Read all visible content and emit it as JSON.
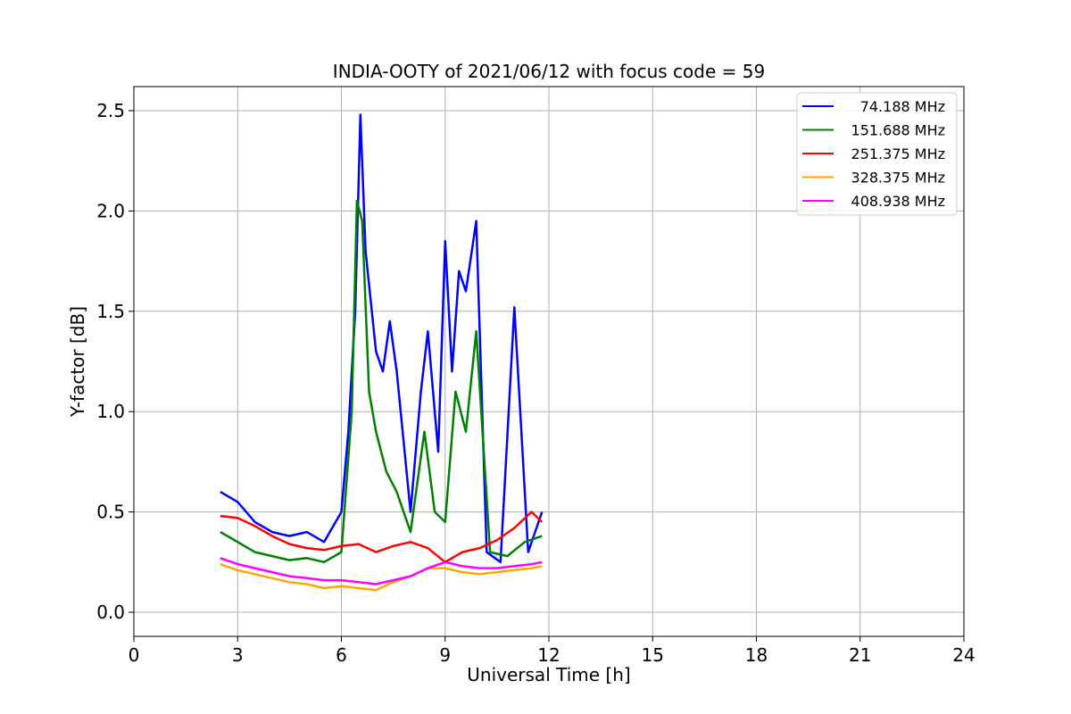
{
  "chart_data": {
    "type": "line",
    "title": "INDIA-OOTY of 2021/06/12 with focus code = 59",
    "xlabel": "Universal Time [h]",
    "ylabel": "Y-factor [dB]",
    "xlim": [
      0,
      24
    ],
    "ylim": [
      -0.12,
      2.62
    ],
    "xticks": [
      0,
      3,
      6,
      9,
      12,
      15,
      18,
      21,
      24
    ],
    "yticks": [
      0.0,
      0.5,
      1.0,
      1.5,
      2.0,
      2.5
    ],
    "xtick_labels": [
      "0",
      "3",
      "6",
      "9",
      "12",
      "15",
      "18",
      "21",
      "24"
    ],
    "ytick_labels": [
      "0.0",
      "0.5",
      "1.0",
      "1.5",
      "2.0",
      "2.5"
    ],
    "grid": true,
    "legend_position": "top-right",
    "series": [
      {
        "name": "74.188 MHz",
        "color": "#0000ff",
        "x": [
          2.5,
          3.0,
          3.5,
          4.0,
          4.5,
          5.0,
          5.5,
          6.0,
          6.2,
          6.4,
          6.55,
          6.7,
          7.0,
          7.2,
          7.4,
          7.6,
          8.0,
          8.3,
          8.5,
          8.8,
          9.0,
          9.2,
          9.4,
          9.6,
          9.9,
          10.2,
          10.6,
          11.0,
          11.4,
          11.8
        ],
        "y": [
          0.6,
          0.55,
          0.45,
          0.4,
          0.38,
          0.4,
          0.35,
          0.5,
          0.9,
          1.5,
          2.48,
          1.8,
          1.3,
          1.2,
          1.45,
          1.2,
          0.5,
          1.1,
          1.4,
          0.8,
          1.85,
          1.2,
          1.7,
          1.6,
          1.95,
          0.3,
          0.25,
          1.52,
          0.3,
          0.5
        ]
      },
      {
        "name": "151.688 MHz",
        "color": "#008000",
        "x": [
          2.5,
          3.0,
          3.5,
          4.0,
          4.5,
          5.0,
          5.5,
          6.0,
          6.3,
          6.45,
          6.6,
          6.8,
          7.0,
          7.3,
          7.6,
          8.0,
          8.4,
          8.7,
          9.0,
          9.3,
          9.6,
          9.9,
          10.3,
          10.8,
          11.3,
          11.8
        ],
        "y": [
          0.4,
          0.35,
          0.3,
          0.28,
          0.26,
          0.27,
          0.25,
          0.3,
          1.0,
          2.05,
          1.95,
          1.1,
          0.9,
          0.7,
          0.6,
          0.4,
          0.9,
          0.5,
          0.45,
          1.1,
          0.9,
          1.4,
          0.3,
          0.28,
          0.35,
          0.38
        ]
      },
      {
        "name": "251.375 MHz",
        "color": "#ff0000",
        "x": [
          2.5,
          3.0,
          3.5,
          4.0,
          4.5,
          5.0,
          5.5,
          6.0,
          6.5,
          7.0,
          7.5,
          8.0,
          8.5,
          9.0,
          9.5,
          10.0,
          10.5,
          11.0,
          11.5,
          11.8
        ],
        "y": [
          0.48,
          0.47,
          0.43,
          0.38,
          0.34,
          0.32,
          0.31,
          0.33,
          0.34,
          0.3,
          0.33,
          0.35,
          0.32,
          0.25,
          0.3,
          0.32,
          0.36,
          0.42,
          0.5,
          0.45
        ]
      },
      {
        "name": "328.375 MHz",
        "color": "#ffa500",
        "x": [
          2.5,
          3.0,
          3.5,
          4.0,
          4.5,
          5.0,
          5.5,
          6.0,
          6.5,
          7.0,
          7.5,
          8.0,
          8.5,
          9.0,
          9.5,
          10.0,
          10.5,
          11.0,
          11.5,
          11.8
        ],
        "y": [
          0.24,
          0.21,
          0.19,
          0.17,
          0.15,
          0.14,
          0.12,
          0.13,
          0.12,
          0.11,
          0.15,
          0.18,
          0.22,
          0.22,
          0.2,
          0.19,
          0.2,
          0.21,
          0.22,
          0.23
        ]
      },
      {
        "name": "408.938 MHz",
        "color": "#ff00ff",
        "x": [
          2.5,
          3.0,
          3.5,
          4.0,
          4.5,
          5.0,
          5.5,
          6.0,
          6.5,
          7.0,
          7.5,
          8.0,
          8.5,
          9.0,
          9.5,
          10.0,
          10.5,
          11.0,
          11.5,
          11.8
        ],
        "y": [
          0.27,
          0.24,
          0.22,
          0.2,
          0.18,
          0.17,
          0.16,
          0.16,
          0.15,
          0.14,
          0.16,
          0.18,
          0.22,
          0.25,
          0.23,
          0.22,
          0.22,
          0.23,
          0.24,
          0.25
        ]
      }
    ]
  }
}
